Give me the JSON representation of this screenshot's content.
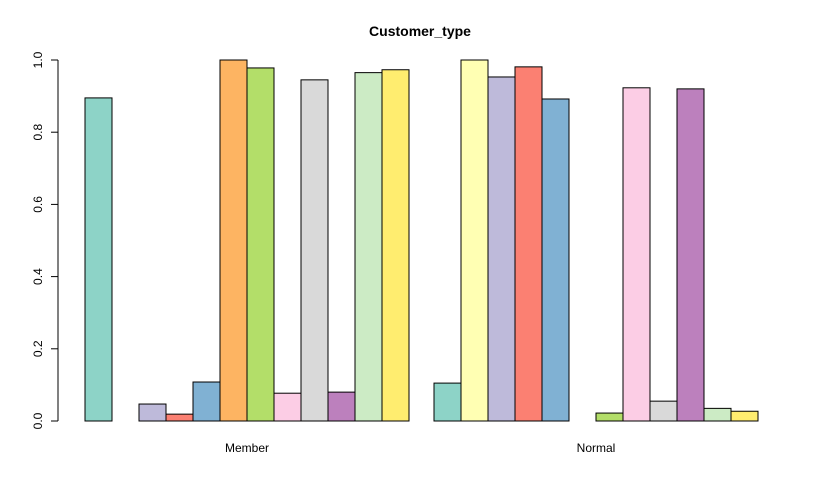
{
  "chart_data": {
    "type": "bar",
    "title": "Customer_type",
    "xlabel": "",
    "ylabel": "",
    "ylim": [
      0,
      1.0
    ],
    "yticks": [
      "0.0",
      "0.2",
      "0.4",
      "0.6",
      "0.8",
      "1.0"
    ],
    "categories": [
      "Member",
      "Normal"
    ],
    "grid": false,
    "legend": "none",
    "series": [
      {
        "color": "#8DD3C7",
        "values": [
          0.895,
          0.105
        ]
      },
      {
        "color": "#FFFFB3",
        "values": [
          0.0,
          1.0
        ]
      },
      {
        "color": "#BEBADA",
        "values": [
          0.047,
          0.953
        ]
      },
      {
        "color": "#FB8072",
        "values": [
          0.019,
          0.981
        ]
      },
      {
        "color": "#80B1D3",
        "values": [
          0.108,
          0.892
        ]
      },
      {
        "color": "#FDB462",
        "values": [
          1.0,
          0.0
        ]
      },
      {
        "color": "#B3DE69",
        "values": [
          0.978,
          0.022
        ]
      },
      {
        "color": "#FCCDE5",
        "values": [
          0.077,
          0.923
        ]
      },
      {
        "color": "#D9D9D9",
        "values": [
          0.945,
          0.055
        ]
      },
      {
        "color": "#BC80BD",
        "values": [
          0.08,
          0.92
        ]
      },
      {
        "color": "#CCEBC5",
        "values": [
          0.965,
          0.035
        ]
      },
      {
        "color": "#FFED6F",
        "values": [
          0.973,
          0.027
        ]
      }
    ]
  }
}
